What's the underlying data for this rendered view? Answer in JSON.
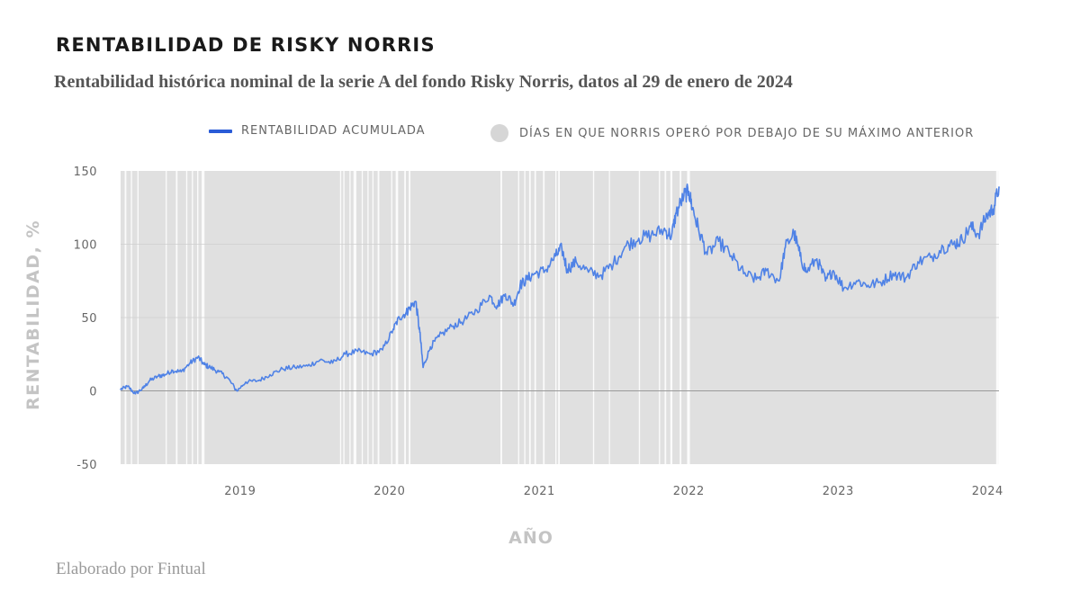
{
  "title": "RENTABILIDAD DE RISKY NORRIS",
  "subtitle": "Rentabilidad histórica nominal de la serie A del fondo Risky Norris, datos al 29 de enero de 2024",
  "footer": "Elaborado por Fintual",
  "colors": {
    "line": "#4f82e6",
    "legend_line": "#2a5bd7",
    "shade": "#e0e0e0",
    "axis_text": "#666666",
    "axis_title": "#c4c4c4"
  },
  "chart_data": {
    "type": "line",
    "title": "RENTABILIDAD DE RISKY NORRIS",
    "xlabel": "AÑO",
    "ylabel": "RENTABILIDAD, %",
    "ylim": [
      -50,
      150
    ],
    "xlim": [
      "2018-03-15",
      "2024-01-29"
    ],
    "yticks": [
      -50,
      0,
      50,
      100,
      150
    ],
    "xticks": [
      {
        "label": "2019",
        "date": "2019-01-01"
      },
      {
        "label": "2020",
        "date": "2020-01-01"
      },
      {
        "label": "2021",
        "date": "2021-01-01"
      },
      {
        "label": "2022",
        "date": "2022-01-01"
      },
      {
        "label": "2023",
        "date": "2023-01-01"
      },
      {
        "label": "2024",
        "date": "2024-01-01"
      }
    ],
    "legend": {
      "position": "top",
      "entries": [
        "RENTABILIDAD ACUMULADA",
        "DÍAS EN QUE NORRIS OPERÓ POR DEBAJO DE SU MÁXIMO ANTERIOR"
      ]
    },
    "series": [
      {
        "name": "RENTABILIDAD ACUMULADA",
        "x": [
          "2018-03-15",
          "2018-04-01",
          "2018-04-20",
          "2018-05-10",
          "2018-05-25",
          "2018-06-15",
          "2018-07-01",
          "2018-07-20",
          "2018-08-10",
          "2018-09-01",
          "2018-09-20",
          "2018-10-05",
          "2018-10-20",
          "2018-11-10",
          "2018-12-01",
          "2018-12-24",
          "2019-01-15",
          "2019-02-15",
          "2019-03-15",
          "2019-04-15",
          "2019-05-15",
          "2019-06-15",
          "2019-07-15",
          "2019-08-15",
          "2019-09-15",
          "2019-10-15",
          "2019-11-15",
          "2019-12-15",
          "2020-01-10",
          "2020-01-25",
          "2020-02-10",
          "2020-02-20",
          "2020-03-05",
          "2020-03-15",
          "2020-03-23",
          "2020-04-10",
          "2020-05-01",
          "2020-06-01",
          "2020-07-01",
          "2020-08-01",
          "2020-09-01",
          "2020-09-20",
          "2020-10-10",
          "2020-10-31",
          "2020-11-15",
          "2020-12-01",
          "2020-12-20",
          "2021-01-15",
          "2021-02-10",
          "2021-02-25",
          "2021-03-10",
          "2021-04-01",
          "2021-05-01",
          "2021-06-01",
          "2021-07-01",
          "2021-08-01",
          "2021-09-01",
          "2021-10-01",
          "2021-11-01",
          "2021-11-20",
          "2021-12-01",
          "2021-12-20",
          "2022-01-01",
          "2022-01-10",
          "2022-01-25",
          "2022-02-15",
          "2022-03-15",
          "2022-04-15",
          "2022-05-15",
          "2022-06-15",
          "2022-07-10",
          "2022-08-10",
          "2022-08-25",
          "2022-09-15",
          "2022-09-30",
          "2022-10-15",
          "2022-11-10",
          "2022-12-01",
          "2022-12-20",
          "2023-01-15",
          "2023-02-15",
          "2023-03-15",
          "2023-04-15",
          "2023-05-15",
          "2023-06-15",
          "2023-07-15",
          "2023-08-15",
          "2023-09-15",
          "2023-10-10",
          "2023-10-31",
          "2023-11-20",
          "2023-12-10",
          "2023-12-31",
          "2024-01-15",
          "2024-01-29"
        ],
        "y": [
          1,
          3,
          -2,
          2,
          7,
          10,
          11,
          14,
          13,
          19,
          23,
          18,
          16,
          13,
          9,
          0,
          6,
          7,
          11,
          15,
          16,
          17,
          21,
          19,
          25,
          27,
          25,
          28,
          42,
          50,
          53,
          57,
          61,
          40,
          16,
          30,
          37,
          44,
          48,
          55,
          65,
          58,
          66,
          59,
          72,
          76,
          80,
          82,
          92,
          97,
          83,
          88,
          81,
          79,
          87,
          99,
          104,
          106,
          110,
          106,
          121,
          133,
          136,
          125,
          110,
          93,
          102,
          92,
          80,
          76,
          82,
          75,
          98,
          108,
          92,
          81,
          90,
          75,
          82,
          70,
          75,
          72,
          74,
          80,
          77,
          88,
          91,
          98,
          100,
          103,
          112,
          107,
          120,
          124,
          139
        ]
      }
    ],
    "shaded_periods_note": "DÍAS EN QUE NORRIS OPERÓ POR DEBAJO DE SU MÁXIMO ANTERIOR",
    "clear_periods": [
      [
        "2018-03-25",
        "2018-03-29"
      ],
      [
        "2018-04-09",
        "2018-04-12"
      ],
      [
        "2018-04-25",
        "2018-04-28"
      ],
      [
        "2018-07-03",
        "2018-07-06"
      ],
      [
        "2018-07-28",
        "2018-08-01"
      ],
      [
        "2018-08-22",
        "2018-08-25"
      ],
      [
        "2018-09-05",
        "2018-09-08"
      ],
      [
        "2018-09-18",
        "2018-09-21"
      ],
      [
        "2018-09-29",
        "2018-10-06"
      ],
      [
        "2019-09-02",
        "2019-09-05"
      ],
      [
        "2019-09-10",
        "2019-09-13"
      ],
      [
        "2019-09-25",
        "2019-09-28"
      ],
      [
        "2019-10-05",
        "2019-10-12"
      ],
      [
        "2019-10-25",
        "2019-10-28"
      ],
      [
        "2019-11-08",
        "2019-11-11"
      ],
      [
        "2019-11-20",
        "2019-11-23"
      ],
      [
        "2019-12-03",
        "2019-12-07"
      ],
      [
        "2020-01-05",
        "2020-01-08"
      ],
      [
        "2020-01-16",
        "2020-01-22"
      ],
      [
        "2020-02-06",
        "2020-02-10"
      ],
      [
        "2020-02-17",
        "2020-02-21"
      ],
      [
        "2020-09-28",
        "2020-10-02"
      ],
      [
        "2020-11-10",
        "2020-11-13"
      ],
      [
        "2020-11-25",
        "2020-11-28"
      ],
      [
        "2020-12-07",
        "2020-12-11"
      ],
      [
        "2020-12-20",
        "2020-12-24"
      ],
      [
        "2021-01-10",
        "2021-01-14"
      ],
      [
        "2021-02-09",
        "2021-02-12"
      ],
      [
        "2021-02-16",
        "2021-02-20"
      ],
      [
        "2021-05-12",
        "2021-05-15"
      ],
      [
        "2021-06-20",
        "2021-06-22"
      ],
      [
        "2021-09-01",
        "2021-09-04"
      ],
      [
        "2021-10-20",
        "2021-10-23"
      ],
      [
        "2021-11-03",
        "2021-11-07"
      ],
      [
        "2021-11-17",
        "2021-11-22"
      ],
      [
        "2021-12-10",
        "2021-12-14"
      ],
      [
        "2021-12-28",
        "2022-01-04"
      ],
      [
        "2024-01-22",
        "2024-01-29"
      ]
    ]
  }
}
